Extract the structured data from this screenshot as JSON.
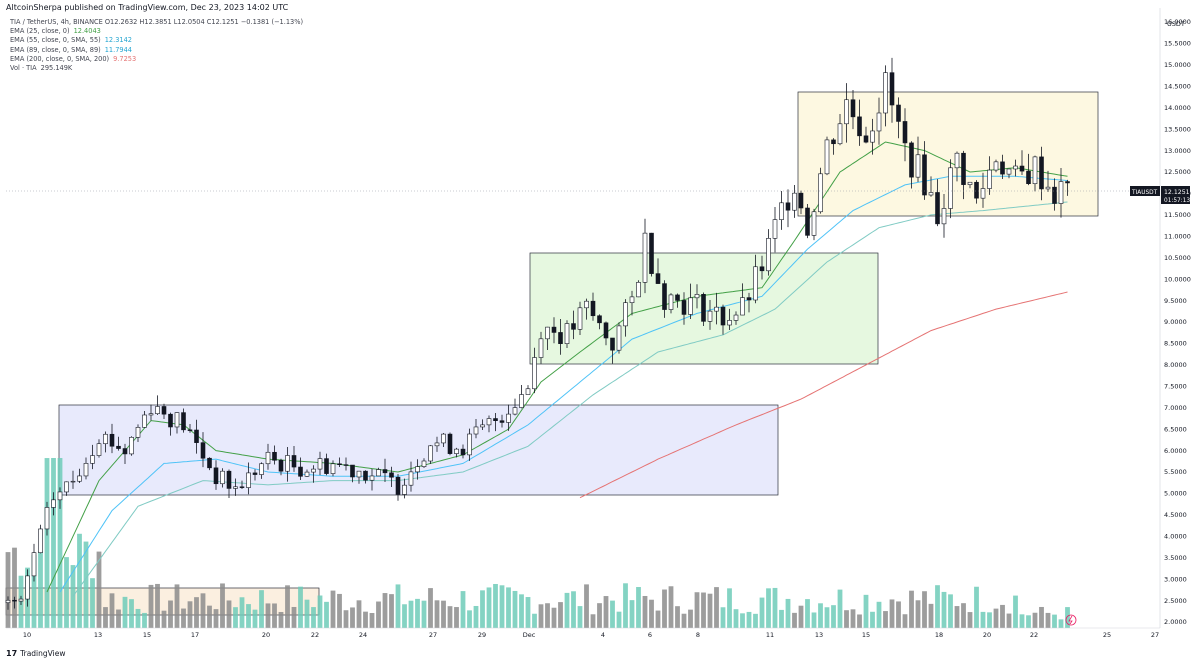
{
  "header": {
    "caption": "AltcoinSherpa published on TradingView.com, Dec 23, 2023 14:02 UTC"
  },
  "legend": [
    {
      "label": "TIA / TetherUS, 4h, BINANCE  O12.2632  H12.3851  L12.0504  C12.1251  −0.1381 (−1.13%)",
      "value": "",
      "color": "#434651"
    },
    {
      "label": "EMA (25, close, 0)",
      "value": "12.4043",
      "color": "#43a047"
    },
    {
      "label": "EMA (55, close, 0, SMA, 55)",
      "value": "12.3142",
      "color": "#4fc3f7"
    },
    {
      "label": "EMA (89, close, 0, SMA, 89)",
      "value": "11.7944",
      "color": "#4fc3f7"
    },
    {
      "label": "EMA (200, close, 0, SMA, 200)",
      "value": "9.7253",
      "color": "#e57373"
    },
    {
      "label": "Vol · TIA",
      "value": "295.149K",
      "color": "#434651"
    }
  ],
  "price_tag": {
    "symbol": "TIAUSDT",
    "price": "12.1251",
    "countdown": "01:57:13"
  },
  "footer": {
    "brand": "TradingView"
  },
  "colors": {
    "up": "#ffffff",
    "down": "#131722",
    "ema25": "#43a047",
    "ema55": "#4fc3f7",
    "ema89": "#80cbc4",
    "ema200": "#e57373",
    "vol_up": "#6fcbb8",
    "vol_down": "#8c8c8c"
  },
  "chart_data": {
    "type": "candlestick",
    "y_unit": "USDT",
    "ylim": [
      2.0,
      16.0
    ],
    "y_ticks": [
      "16.0000",
      "15.5000",
      "15.0000",
      "14.5000",
      "14.0000",
      "13.5000",
      "13.0000",
      "12.5000",
      "12.0000",
      "11.5000",
      "11.0000",
      "10.5000",
      "10.0000",
      "9.5000",
      "9.0000",
      "8.5000",
      "8.0000",
      "7.5000",
      "7.0000",
      "6.5000",
      "6.0000",
      "5.5000",
      "5.0000",
      "4.5000",
      "4.0000",
      "3.5000",
      "3.0000",
      "2.5000",
      "2.0000"
    ],
    "x_ticks": [
      "10",
      "13",
      "15",
      "17",
      "20",
      "22",
      "24",
      "27",
      "29",
      "Dec",
      "4",
      "6",
      "8",
      "11",
      "13",
      "15",
      "18",
      "20",
      "22",
      "25",
      "27"
    ],
    "last_price": 12.1251,
    "ranges": [
      {
        "name": "box-range-1",
        "from": "Nov 11",
        "to": "Dec 11",
        "low": 5.0,
        "high": 7.1,
        "color": "#e8eafc"
      },
      {
        "name": "box-range-2",
        "from": "Dec 2",
        "to": "Dec 16",
        "low": 8.1,
        "high": 10.65,
        "color": "#e6f8e0"
      },
      {
        "name": "box-range-3",
        "from": "Dec 12",
        "to": "Dec 25",
        "low": 11.55,
        "high": 14.5,
        "color": "#fdf8e1"
      },
      {
        "name": "box-volume",
        "from": "Nov 10",
        "to": "Nov 22",
        "color": "#fbefe0"
      }
    ],
    "price_keypoints": [
      {
        "t": 0,
        "p": 2.45
      },
      {
        "t": 2,
        "p": 2.4
      },
      {
        "t": 4,
        "p": 3.6
      },
      {
        "t": 7,
        "p": 4.9
      },
      {
        "t": 10,
        "p": 5.3
      },
      {
        "t": 14,
        "p": 6.4
      },
      {
        "t": 18,
        "p": 6.0
      },
      {
        "t": 22,
        "p": 7.1
      },
      {
        "t": 27,
        "p": 6.6
      },
      {
        "t": 32,
        "p": 5.4
      },
      {
        "t": 35,
        "p": 5.1
      },
      {
        "t": 40,
        "p": 5.8
      },
      {
        "t": 45,
        "p": 5.6
      },
      {
        "t": 50,
        "p": 5.7
      },
      {
        "t": 55,
        "p": 5.5
      },
      {
        "t": 60,
        "p": 5.2
      },
      {
        "t": 65,
        "p": 6.2
      },
      {
        "t": 70,
        "p": 6.1
      },
      {
        "t": 74,
        "p": 6.6
      },
      {
        "t": 77,
        "p": 7.0
      },
      {
        "t": 80,
        "p": 7.5
      },
      {
        "t": 82,
        "p": 8.9
      },
      {
        "t": 86,
        "p": 8.7
      },
      {
        "t": 89,
        "p": 9.3
      },
      {
        "t": 93,
        "p": 8.5
      },
      {
        "t": 96,
        "p": 9.5
      },
      {
        "t": 98,
        "p": 10.9
      },
      {
        "t": 101,
        "p": 9.6
      },
      {
        "t": 106,
        "p": 9.4
      },
      {
        "t": 110,
        "p": 9.1
      },
      {
        "t": 113,
        "p": 9.3
      },
      {
        "t": 116,
        "p": 10.3
      },
      {
        "t": 119,
        "p": 11.6
      },
      {
        "t": 121,
        "p": 12.3
      },
      {
        "t": 123,
        "p": 11.2
      },
      {
        "t": 126,
        "p": 13.1
      },
      {
        "t": 129,
        "p": 14.1
      },
      {
        "t": 132,
        "p": 13.4
      },
      {
        "t": 135,
        "p": 14.5
      },
      {
        "t": 138,
        "p": 13.0
      },
      {
        "t": 141,
        "p": 12.3
      },
      {
        "t": 143,
        "p": 11.5
      },
      {
        "t": 146,
        "p": 12.8
      },
      {
        "t": 149,
        "p": 11.8
      },
      {
        "t": 152,
        "p": 12.9
      },
      {
        "t": 155,
        "p": 12.3
      },
      {
        "t": 158,
        "p": 12.6
      },
      {
        "t": 161,
        "p": 12.0
      },
      {
        "t": 163,
        "p": 12.1
      }
    ],
    "ema_keypoints": {
      "ema25": [
        [
          6,
          2.7
        ],
        [
          14,
          5.3
        ],
        [
          22,
          6.7
        ],
        [
          27,
          6.6
        ],
        [
          32,
          6.0
        ],
        [
          40,
          5.8
        ],
        [
          50,
          5.7
        ],
        [
          60,
          5.5
        ],
        [
          70,
          5.9
        ],
        [
          77,
          6.5
        ],
        [
          82,
          7.6
        ],
        [
          88,
          8.3
        ],
        [
          96,
          9.2
        ],
        [
          106,
          9.6
        ],
        [
          116,
          9.8
        ],
        [
          121,
          10.9
        ],
        [
          128,
          12.5
        ],
        [
          135,
          13.2
        ],
        [
          141,
          13.0
        ],
        [
          148,
          12.5
        ],
        [
          155,
          12.6
        ],
        [
          163,
          12.4
        ]
      ],
      "ema55": [
        [
          8,
          2.7
        ],
        [
          16,
          4.6
        ],
        [
          24,
          5.7
        ],
        [
          32,
          5.8
        ],
        [
          40,
          5.5
        ],
        [
          50,
          5.4
        ],
        [
          60,
          5.4
        ],
        [
          70,
          5.7
        ],
        [
          80,
          6.6
        ],
        [
          88,
          7.6
        ],
        [
          96,
          8.6
        ],
        [
          106,
          9.2
        ],
        [
          116,
          9.6
        ],
        [
          123,
          10.7
        ],
        [
          130,
          11.6
        ],
        [
          138,
          12.2
        ],
        [
          145,
          12.4
        ],
        [
          155,
          12.4
        ],
        [
          163,
          12.3
        ]
      ],
      "ema89": [
        [
          10,
          2.6
        ],
        [
          20,
          4.7
        ],
        [
          30,
          5.3
        ],
        [
          40,
          5.2
        ],
        [
          50,
          5.3
        ],
        [
          60,
          5.3
        ],
        [
          70,
          5.5
        ],
        [
          80,
          6.1
        ],
        [
          90,
          7.3
        ],
        [
          100,
          8.3
        ],
        [
          110,
          8.7
        ],
        [
          118,
          9.3
        ],
        [
          126,
          10.4
        ],
        [
          134,
          11.2
        ],
        [
          142,
          11.5
        ],
        [
          150,
          11.6
        ],
        [
          163,
          11.8
        ]
      ],
      "ema200": [
        [
          88,
          4.9
        ],
        [
          100,
          5.8
        ],
        [
          112,
          6.6
        ],
        [
          122,
          7.2
        ],
        [
          132,
          8.0
        ],
        [
          142,
          8.8
        ],
        [
          152,
          9.3
        ],
        [
          163,
          9.7
        ]
      ]
    }
  }
}
